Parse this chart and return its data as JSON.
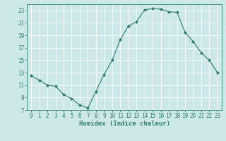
{
  "x": [
    0,
    1,
    2,
    3,
    4,
    5,
    6,
    7,
    8,
    9,
    10,
    11,
    12,
    13,
    14,
    15,
    16,
    17,
    18,
    19,
    20,
    21,
    22,
    23
  ],
  "y": [
    12.5,
    11.8,
    11.0,
    10.8,
    9.5,
    8.8,
    7.8,
    7.3,
    10.0,
    12.7,
    15.0,
    18.3,
    20.5,
    21.2,
    23.1,
    23.3,
    23.2,
    22.8,
    22.7,
    19.5,
    18.0,
    16.2,
    15.0,
    13.0
  ],
  "line_color": "#2e7d6e",
  "marker": "D",
  "marker_size": 2.0,
  "bg_color": "#cce8e8",
  "grid_color": "#ffffff",
  "xlabel": "Humidex (Indice chaleur)",
  "xlim": [
    -0.5,
    23.5
  ],
  "ylim": [
    7,
    24
  ],
  "yticks": [
    7,
    9,
    11,
    13,
    15,
    17,
    19,
    21,
    23
  ],
  "xticks": [
    0,
    1,
    2,
    3,
    4,
    5,
    6,
    7,
    8,
    9,
    10,
    11,
    12,
    13,
    14,
    15,
    16,
    17,
    18,
    19,
    20,
    21,
    22,
    23
  ],
  "xlabel_fontsize": 6.5,
  "tick_fontsize": 5.5,
  "label_color": "#2e7d6e",
  "linewidth": 0.8
}
